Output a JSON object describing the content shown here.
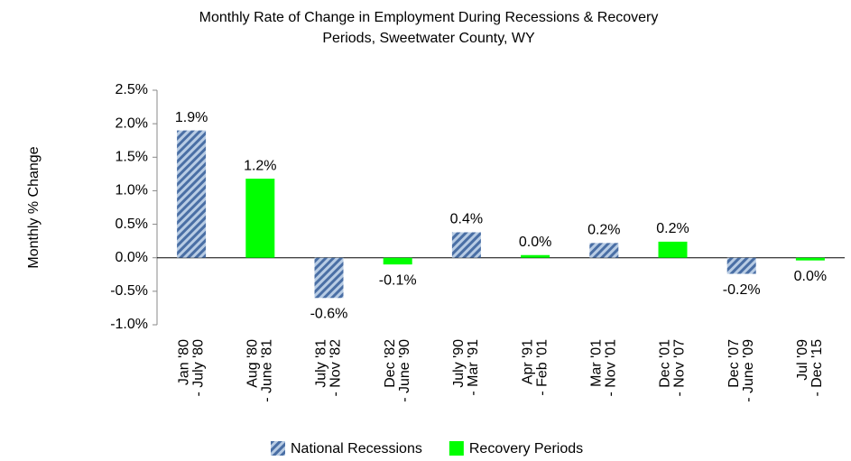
{
  "chart_data": {
    "type": "bar",
    "title": [
      "Monthly Rate of Change in Employment During Recessions & Recovery",
      "Periods, Sweetwater County, WY"
    ],
    "y_label": "Monthly % Change",
    "categories": [
      [
        "Jan '80",
        "- July '80"
      ],
      [
        "Aug '80",
        "- June '81"
      ],
      [
        "July '81",
        "- Nov '82"
      ],
      [
        "Dec '82",
        "- June '90"
      ],
      [
        "July '90",
        "- Mar '91"
      ],
      [
        "Apr '91",
        "- Feb '01"
      ],
      [
        "Mar '01",
        "- Nov '01"
      ],
      [
        "Dec '01",
        "- Nov '07"
      ],
      [
        "Dec '07",
        "- June '09"
      ],
      [
        "Jul '09",
        "- Dec '15"
      ]
    ],
    "series": [
      {
        "name": "National Recessions",
        "color": "#4a6fa5",
        "pattern": "hatch",
        "values": [
          1.9,
          null,
          -0.6,
          null,
          0.38,
          null,
          0.22,
          null,
          -0.24,
          null
        ],
        "value_labels": [
          "1.9%",
          null,
          "-0.6%",
          null,
          "0.4%",
          null,
          "0.2%",
          null,
          "-0.2%",
          null
        ]
      },
      {
        "name": "Recovery Periods",
        "color": "#00ff00",
        "values": [
          null,
          1.18,
          null,
          -0.1,
          null,
          0.04,
          null,
          0.24,
          null,
          -0.04
        ],
        "value_labels": [
          null,
          "1.2%",
          null,
          "-0.1%",
          null,
          "0.0%",
          null,
          "0.2%",
          null,
          "0.0%"
        ]
      }
    ],
    "ylim": [
      -1.0,
      2.5
    ],
    "yticks": [
      {
        "value": -1.0,
        "label": "-1.0%"
      },
      {
        "value": -0.5,
        "label": "-0.5%"
      },
      {
        "value": 0,
        "label": "0.0%"
      },
      {
        "value": 0.5,
        "label": "0.5%"
      },
      {
        "value": 1.0,
        "label": "1.0%"
      },
      {
        "value": 1.5,
        "label": "1.5%"
      },
      {
        "value": 2.0,
        "label": "2.0%"
      },
      {
        "value": 2.5,
        "label": "2.5%"
      }
    ],
    "grid": false,
    "legend": "bottom"
  }
}
